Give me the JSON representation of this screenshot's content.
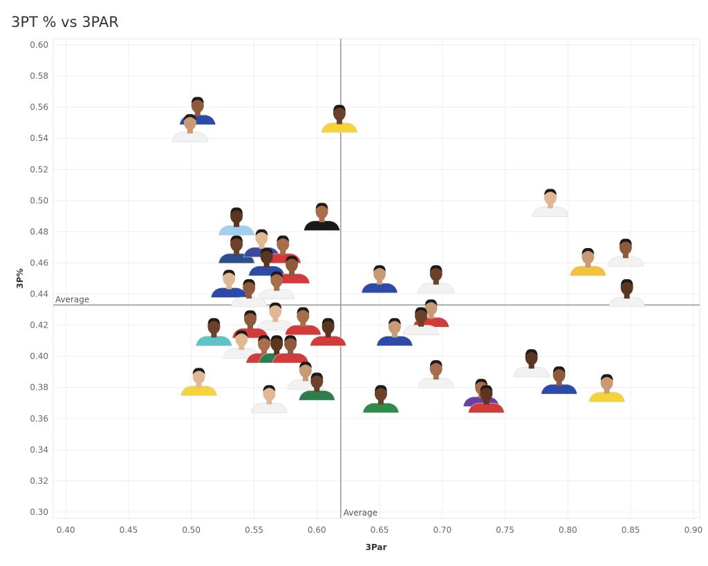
{
  "chart_data": {
    "type": "scatter",
    "title": "3PT % vs 3PAR",
    "xlabel": "3Par",
    "ylabel": "3P%",
    "xlim": [
      0.39,
      0.905
    ],
    "ylim": [
      0.296,
      0.604
    ],
    "x_ticks": [
      "0.40",
      "0.45",
      "0.50",
      "0.55",
      "0.60",
      "0.65",
      "0.70",
      "0.75",
      "0.80",
      "0.85",
      "0.90"
    ],
    "y_ticks": [
      "0.30",
      "0.32",
      "0.34",
      "0.36",
      "0.38",
      "0.40",
      "0.42",
      "0.44",
      "0.46",
      "0.48",
      "0.50",
      "0.52",
      "0.54",
      "0.56",
      "0.58",
      "0.60"
    ],
    "grid": true,
    "reference_lines": {
      "x_average": {
        "value": 0.619,
        "label": "Average"
      },
      "y_average": {
        "value": 0.433,
        "label": "Average"
      }
    },
    "marker_style": "player-headshot",
    "points": [
      {
        "x": 0.505,
        "y": 0.555,
        "jersey": "#2d4aa7"
      },
      {
        "x": 0.499,
        "y": 0.544,
        "jersey": "#f2f2f2"
      },
      {
        "x": 0.618,
        "y": 0.55,
        "jersey": "#f5d33a"
      },
      {
        "x": 0.786,
        "y": 0.496,
        "jersey": "#f2f2f2"
      },
      {
        "x": 0.604,
        "y": 0.487,
        "jersey": "#1a1a1a"
      },
      {
        "x": 0.536,
        "y": 0.484,
        "jersey": "#9fd1ef"
      },
      {
        "x": 0.846,
        "y": 0.464,
        "jersey": "#f2f2f2"
      },
      {
        "x": 0.816,
        "y": 0.458,
        "jersey": "#f3c23b"
      },
      {
        "x": 0.536,
        "y": 0.466,
        "jersey": "#2a4f8a"
      },
      {
        "x": 0.556,
        "y": 0.47,
        "jersey": "#3a4b9f"
      },
      {
        "x": 0.573,
        "y": 0.466,
        "jersey": "#d33b3b"
      },
      {
        "x": 0.56,
        "y": 0.458,
        "jersey": "#2d4aa7"
      },
      {
        "x": 0.58,
        "y": 0.453,
        "jersey": "#d33b3b"
      },
      {
        "x": 0.65,
        "y": 0.447,
        "jersey": "#2d4aa7"
      },
      {
        "x": 0.695,
        "y": 0.447,
        "jersey": "#f2f2f2"
      },
      {
        "x": 0.53,
        "y": 0.444,
        "jersey": "#2d4aa7"
      },
      {
        "x": 0.568,
        "y": 0.443,
        "jersey": "#f2f2f2"
      },
      {
        "x": 0.847,
        "y": 0.438,
        "jersey": "#f2f2f2"
      },
      {
        "x": 0.546,
        "y": 0.438,
        "jersey": "#f2f2f2"
      },
      {
        "x": 0.691,
        "y": 0.425,
        "jersey": "#d33b3b"
      },
      {
        "x": 0.683,
        "y": 0.42,
        "jersey": "#f2f2f2"
      },
      {
        "x": 0.567,
        "y": 0.423,
        "jersey": "#f2f2f2"
      },
      {
        "x": 0.589,
        "y": 0.42,
        "jersey": "#d33b3b"
      },
      {
        "x": 0.609,
        "y": 0.413,
        "jersey": "#d33b3b"
      },
      {
        "x": 0.547,
        "y": 0.418,
        "jersey": "#d33b3b"
      },
      {
        "x": 0.662,
        "y": 0.413,
        "jersey": "#2d4aa7"
      },
      {
        "x": 0.518,
        "y": 0.413,
        "jersey": "#5ec4c8"
      },
      {
        "x": 0.54,
        "y": 0.405,
        "jersey": "#f2f2f2"
      },
      {
        "x": 0.558,
        "y": 0.402,
        "jersey": "#d33b3b"
      },
      {
        "x": 0.568,
        "y": 0.402,
        "jersey": "#2e7d4f"
      },
      {
        "x": 0.579,
        "y": 0.402,
        "jersey": "#d33b3b"
      },
      {
        "x": 0.591,
        "y": 0.385,
        "jersey": "#f2f2f2"
      },
      {
        "x": 0.6,
        "y": 0.378,
        "jersey": "#2e7d4f"
      },
      {
        "x": 0.506,
        "y": 0.381,
        "jersey": "#f5d33a"
      },
      {
        "x": 0.695,
        "y": 0.386,
        "jersey": "#f2f2f2"
      },
      {
        "x": 0.771,
        "y": 0.393,
        "jersey": "#f2f2f2"
      },
      {
        "x": 0.793,
        "y": 0.382,
        "jersey": "#2d4aa7"
      },
      {
        "x": 0.831,
        "y": 0.377,
        "jersey": "#f5d33a"
      },
      {
        "x": 0.651,
        "y": 0.37,
        "jersey": "#2e8b4a"
      },
      {
        "x": 0.562,
        "y": 0.37,
        "jersey": "#f2f2f2"
      },
      {
        "x": 0.731,
        "y": 0.374,
        "jersey": "#6a3fa0"
      },
      {
        "x": 0.735,
        "y": 0.37,
        "jersey": "#d33b3b"
      }
    ]
  }
}
